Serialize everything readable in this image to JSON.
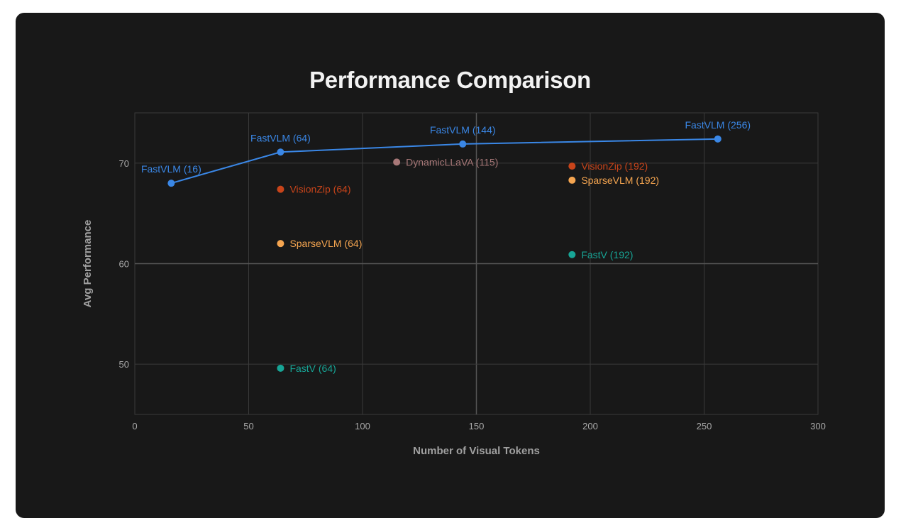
{
  "chart_data": {
    "type": "scatter",
    "title": "Performance Comparison",
    "xlabel": "Number of Visual Tokens",
    "ylabel": "Avg Performance",
    "xlim": [
      0,
      300
    ],
    "ylim": [
      45,
      75
    ],
    "x_ticks": [
      0,
      50,
      100,
      150,
      200,
      250,
      300
    ],
    "y_ticks": [
      50,
      60,
      70
    ],
    "grid": true,
    "series": [
      {
        "name": "FastVLM",
        "color": "#3a87e6",
        "line": true,
        "points": [
          {
            "label": "FastVLM (16)",
            "x": 16,
            "y": 68.0
          },
          {
            "label": "FastVLM (64)",
            "x": 64,
            "y": 71.1
          },
          {
            "label": "FastVLM (144)",
            "x": 144,
            "y": 71.9
          },
          {
            "label": "FastVLM (256)",
            "x": 256,
            "y": 72.4
          }
        ]
      },
      {
        "name": "VisionZip",
        "color": "#c8441a",
        "line": false,
        "points": [
          {
            "label": "VisionZip (64)",
            "x": 64,
            "y": 67.4
          },
          {
            "label": "VisionZip (192)",
            "x": 192,
            "y": 69.7
          }
        ]
      },
      {
        "name": "SparseVLM",
        "color": "#f5a550",
        "line": false,
        "points": [
          {
            "label": "SparseVLM (64)",
            "x": 64,
            "y": 62.0
          },
          {
            "label": "SparseVLM (192)",
            "x": 192,
            "y": 68.3
          }
        ]
      },
      {
        "name": "FastV",
        "color": "#17a596",
        "line": false,
        "points": [
          {
            "label": "FastV (64)",
            "x": 64,
            "y": 49.6
          },
          {
            "label": "FastV (192)",
            "x": 192,
            "y": 60.9
          }
        ]
      },
      {
        "name": "DynamicLLaVA",
        "color": "#a87878",
        "line": false,
        "points": [
          {
            "label": "DynamicLLaVA (115)",
            "x": 115,
            "y": 70.1
          }
        ]
      }
    ]
  }
}
